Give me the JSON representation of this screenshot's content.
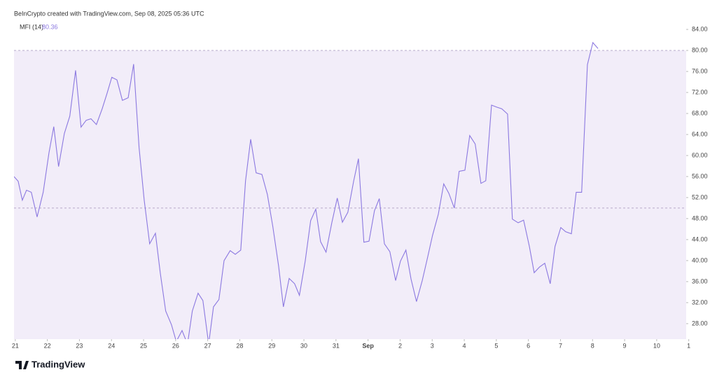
{
  "chart_data": {
    "type": "line",
    "title": "BeInCrypto created with TradingView.com, Sep 08, 2025 05:36 UTC",
    "legend_label": "MFI (14)",
    "watermark": "TradingView",
    "fill_color": "#f2edf9",
    "levels": [
      80,
      50
    ],
    "xlim": [
      -0.04,
      20.92
    ],
    "ylim": [
      25.05,
      85.6
    ],
    "xticks": [
      {
        "value": 0,
        "label": "21"
      },
      {
        "value": 1,
        "label": "22"
      },
      {
        "value": 2,
        "label": "23"
      },
      {
        "value": 3,
        "label": "24"
      },
      {
        "value": 4,
        "label": "25"
      },
      {
        "value": 5,
        "label": "26"
      },
      {
        "value": 6,
        "label": "27"
      },
      {
        "value": 7,
        "label": "28"
      },
      {
        "value": 8,
        "label": "29"
      },
      {
        "value": 9,
        "label": "30"
      },
      {
        "value": 10,
        "label": "31"
      },
      {
        "value": 11,
        "label": "Sep"
      },
      {
        "value": 12,
        "label": "2"
      },
      {
        "value": 13,
        "label": "3"
      },
      {
        "value": 14,
        "label": "4"
      },
      {
        "value": 15,
        "label": "5"
      },
      {
        "value": 16,
        "label": "6"
      },
      {
        "value": 17,
        "label": "7"
      },
      {
        "value": 18,
        "label": "8"
      },
      {
        "value": 19,
        "label": "9"
      },
      {
        "value": 20,
        "label": "10"
      },
      {
        "value": 21,
        "label": "1"
      }
    ],
    "yticks": [
      {
        "value": 28,
        "label": "28.00"
      },
      {
        "value": 32,
        "label": "32.00"
      },
      {
        "value": 36,
        "label": "36.00"
      },
      {
        "value": 40,
        "label": "40.00"
      },
      {
        "value": 44,
        "label": "44.00"
      },
      {
        "value": 48,
        "label": "48.00"
      },
      {
        "value": 52,
        "label": "52.00"
      },
      {
        "value": 56,
        "label": "56.00"
      },
      {
        "value": 60,
        "label": "60.00"
      },
      {
        "value": 64,
        "label": "64.00"
      },
      {
        "value": 68,
        "label": "68.00"
      },
      {
        "value": 72,
        "label": "72.00"
      },
      {
        "value": 76,
        "label": "76.00"
      },
      {
        "value": 80,
        "label": "80.00"
      },
      {
        "value": 84,
        "label": "84.00"
      }
    ],
    "x": [
      -0.04,
      0.09,
      0.22,
      0.35,
      0.5,
      0.68,
      0.87,
      1.05,
      1.2,
      1.35,
      1.53,
      1.7,
      1.88,
      2.05,
      2.21,
      2.36,
      2.53,
      2.71,
      2.86,
      3.01,
      3.17,
      3.34,
      3.52,
      3.69,
      3.86,
      4.02,
      4.19,
      4.37,
      4.52,
      4.69,
      4.87,
      5.02,
      5.2,
      5.37,
      5.52,
      5.7,
      5.85,
      6.03,
      6.18,
      6.35,
      6.51,
      6.7,
      6.86,
      7.03,
      7.18,
      7.34,
      7.51,
      7.69,
      7.86,
      8.03,
      8.21,
      8.36,
      8.54,
      8.71,
      8.86,
      9.04,
      9.21,
      9.37,
      9.52,
      9.69,
      9.87,
      10.04,
      10.2,
      10.37,
      10.55,
      10.7,
      10.87,
      11.03,
      11.2,
      11.35,
      11.51,
      11.68,
      11.86,
      12.01,
      12.18,
      12.34,
      12.51,
      12.69,
      12.86,
      13.01,
      13.19,
      13.36,
      13.52,
      13.69,
      13.84,
      14.02,
      14.17,
      14.34,
      14.52,
      14.67,
      14.85,
      15.02,
      15.17,
      15.35,
      15.5,
      15.68,
      15.85,
      16.03,
      16.18,
      16.35,
      16.51,
      16.68,
      16.83,
      17.01,
      17.16,
      17.34,
      17.49,
      17.66,
      17.84,
      18.01,
      18.17
    ],
    "series": [
      {
        "name": "MFI (14)",
        "color": "#8b78e0",
        "values": [
          56.0,
          55.1,
          51.5,
          53.4,
          53.0,
          48.3,
          53.0,
          60.5,
          65.5,
          57.9,
          64.2,
          67.5,
          76.2,
          65.4,
          66.7,
          67.0,
          65.9,
          68.9,
          71.8,
          74.9,
          74.4,
          70.5,
          71.0,
          77.4,
          61.5,
          51.5,
          43.2,
          45.2,
          37.7,
          30.4,
          27.8,
          24.6,
          26.7,
          24.1,
          30.4,
          33.8,
          32.4,
          24.1,
          31.2,
          32.6,
          40.0,
          41.9,
          41.2,
          42.0,
          55.2,
          63.1,
          56.7,
          56.4,
          52.6,
          46.5,
          39.0,
          31.2,
          36.6,
          35.6,
          33.4,
          39.9,
          47.6,
          49.8,
          43.6,
          41.6,
          47.2,
          51.9,
          47.3,
          49.2,
          55.1,
          59.4,
          43.5,
          43.7,
          49.5,
          51.8,
          43.2,
          41.7,
          36.2,
          39.9,
          42.0,
          36.5,
          32.2,
          36.2,
          40.7,
          44.8,
          48.8,
          54.6,
          52.8,
          50.0,
          57.0,
          57.2,
          63.8,
          62.2,
          54.7,
          55.2,
          69.6,
          69.2,
          68.9,
          67.9,
          47.9,
          47.2,
          47.7,
          42.7,
          37.7,
          38.8,
          39.5,
          35.6,
          42.7,
          46.3,
          45.5,
          45.1,
          53.0,
          53.0,
          77.3,
          81.5,
          80.36
        ]
      }
    ]
  }
}
